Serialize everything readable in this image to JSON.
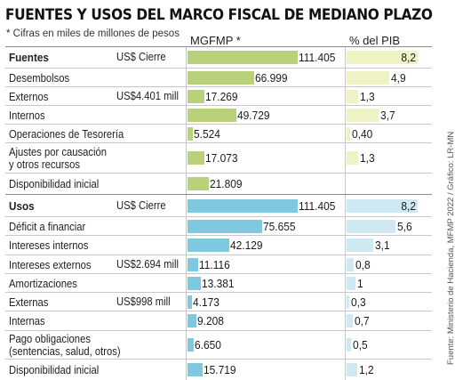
{
  "title": "FUENTES Y USOS DEL MARCO FISCAL DE MEDIANO PLAZO",
  "note": "* Cifras en miles de millones de pesos",
  "col_headers": {
    "mgfmp": "MGFMP *",
    "pib": "% del PIB"
  },
  "source": "Fuente: Ministerio de Hacienda, MFMP 2022 / Gráfico: LR-MN",
  "colors": {
    "fuentes_main": "#b9d17a",
    "fuentes_pib": "#eef2c4",
    "usos_main": "#7ec8e0",
    "usos_pib": "#cfe9f3"
  },
  "chart_data": {
    "type": "bar",
    "title": "FUENTES Y USOS DEL MARCO FISCAL DE MEDIANO PLAZO",
    "sections": [
      {
        "name": "Fuentes",
        "rows": [
          {
            "label": "Fuentes",
            "unit": "US$ Cierre",
            "mgfmp": 111.405,
            "mgfmp_text": "111.405",
            "pib": 8.2,
            "pib_text": "8,2",
            "header": true
          },
          {
            "label": "Desembolsos",
            "unit": "",
            "mgfmp": 66.999,
            "mgfmp_text": "66.999",
            "pib": 4.9,
            "pib_text": "4,9"
          },
          {
            "label": "Externos",
            "unit": "US$4.401 mill",
            "mgfmp": 17.269,
            "mgfmp_text": "17.269",
            "pib": 1.3,
            "pib_text": "1,3"
          },
          {
            "label": "Internos",
            "unit": "",
            "mgfmp": 49.729,
            "mgfmp_text": "49.729",
            "pib": 3.7,
            "pib_text": "3,7"
          },
          {
            "label": "Operaciones de Tesorería",
            "unit": "",
            "mgfmp": 5.524,
            "mgfmp_text": "5.524",
            "pib": 0.4,
            "pib_text": "0,40"
          },
          {
            "label": "Ajustes por causación\ny otros recursos",
            "unit": "",
            "mgfmp": 17.073,
            "mgfmp_text": "17.073",
            "pib": 1.3,
            "pib_text": "1,3"
          },
          {
            "label": "Disponibilidad inicial",
            "unit": "",
            "mgfmp": 21.809,
            "mgfmp_text": "21.809",
            "pib": null,
            "pib_text": ""
          }
        ]
      },
      {
        "name": "Usos",
        "rows": [
          {
            "label": "Usos",
            "unit": "US$ Cierre",
            "mgfmp": 111.405,
            "mgfmp_text": "111.405",
            "pib": 8.2,
            "pib_text": "8,2",
            "header": true
          },
          {
            "label": "Déficit a financiar",
            "unit": "",
            "mgfmp": 75.655,
            "mgfmp_text": "75.655",
            "pib": 5.6,
            "pib_text": "5,6"
          },
          {
            "label": "Intereses internos",
            "unit": "",
            "mgfmp": 42.129,
            "mgfmp_text": "42.129",
            "pib": 3.1,
            "pib_text": "3,1"
          },
          {
            "label": "Intereses externos",
            "unit": "US$2.694 mill",
            "mgfmp": 11.116,
            "mgfmp_text": "11.116",
            "pib": 0.8,
            "pib_text": "0,8"
          },
          {
            "label": "Amortizaciones",
            "unit": "",
            "mgfmp": 13.381,
            "mgfmp_text": "13.381",
            "pib": 1,
            "pib_text": "1"
          },
          {
            "label": "Externas",
            "unit": "US$998 mill",
            "mgfmp": 4.173,
            "mgfmp_text": "4.173",
            "pib": 0.3,
            "pib_text": "0,3"
          },
          {
            "label": "Internas",
            "unit": "",
            "mgfmp": 9.208,
            "mgfmp_text": "9.208",
            "pib": 0.7,
            "pib_text": "0,7"
          },
          {
            "label": "Pago obligaciones\n(sentencias, salud, otros)",
            "unit": "",
            "mgfmp": 6.65,
            "mgfmp_text": "6.650",
            "pib": 0.5,
            "pib_text": "0,5"
          },
          {
            "label": "Disponibilidad inicial",
            "unit": "",
            "mgfmp": 15.719,
            "mgfmp_text": "15.719",
            "pib": 1.2,
            "pib_text": "1,2"
          }
        ]
      }
    ],
    "xlim_mgfmp": [
      0,
      111.405
    ],
    "xlim_pib": [
      0,
      8.2
    ],
    "grid": false,
    "legend": "none"
  }
}
